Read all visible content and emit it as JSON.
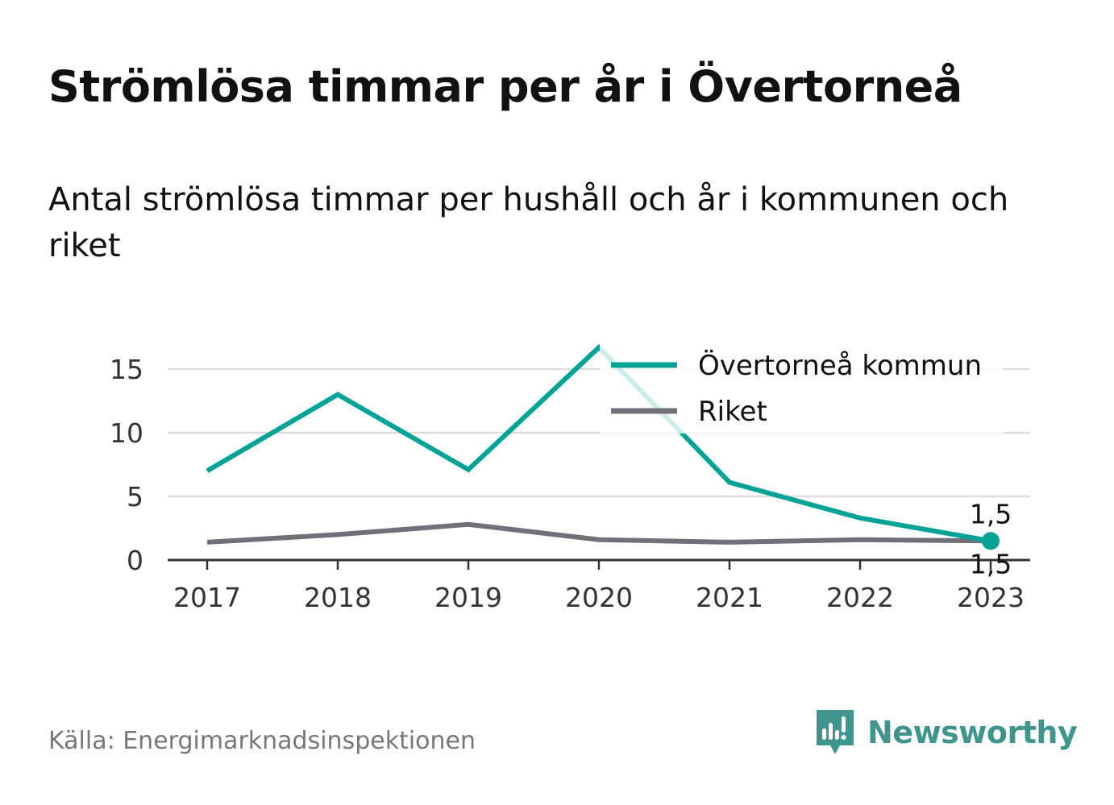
{
  "title": "Strömlösa timmar per år i Övertorneå",
  "subtitle": "Antal strömlösa timmar per hushåll och år i kommunen och riket",
  "source": "Källa: Energimarknadsinspektionen",
  "brand": {
    "name": "Newsworthy",
    "icon": "newsworthy-logo-icon",
    "color": "#3f958d"
  },
  "chart_data": {
    "type": "line",
    "categories": [
      "2017",
      "2018",
      "2019",
      "2020",
      "2021",
      "2022",
      "2023"
    ],
    "series": [
      {
        "name": "Övertorneå kommun",
        "color": "#00a396",
        "values": [
          7.0,
          13.0,
          7.1,
          16.7,
          6.1,
          3.3,
          1.5
        ]
      },
      {
        "name": "Riket",
        "color": "#707078",
        "values": [
          1.4,
          2.0,
          2.8,
          1.6,
          1.4,
          1.6,
          1.5
        ]
      }
    ],
    "y_ticks": [
      0,
      5,
      10,
      15
    ],
    "ylim": [
      0,
      16.7
    ],
    "grid": true,
    "legend": "top-right",
    "end_labels": [
      {
        "series": "Övertorneå kommun",
        "category": "2023",
        "text": "1,5",
        "position": "above"
      },
      {
        "series": "Riket",
        "category": "2023",
        "text": "1,5",
        "position": "below"
      }
    ]
  }
}
